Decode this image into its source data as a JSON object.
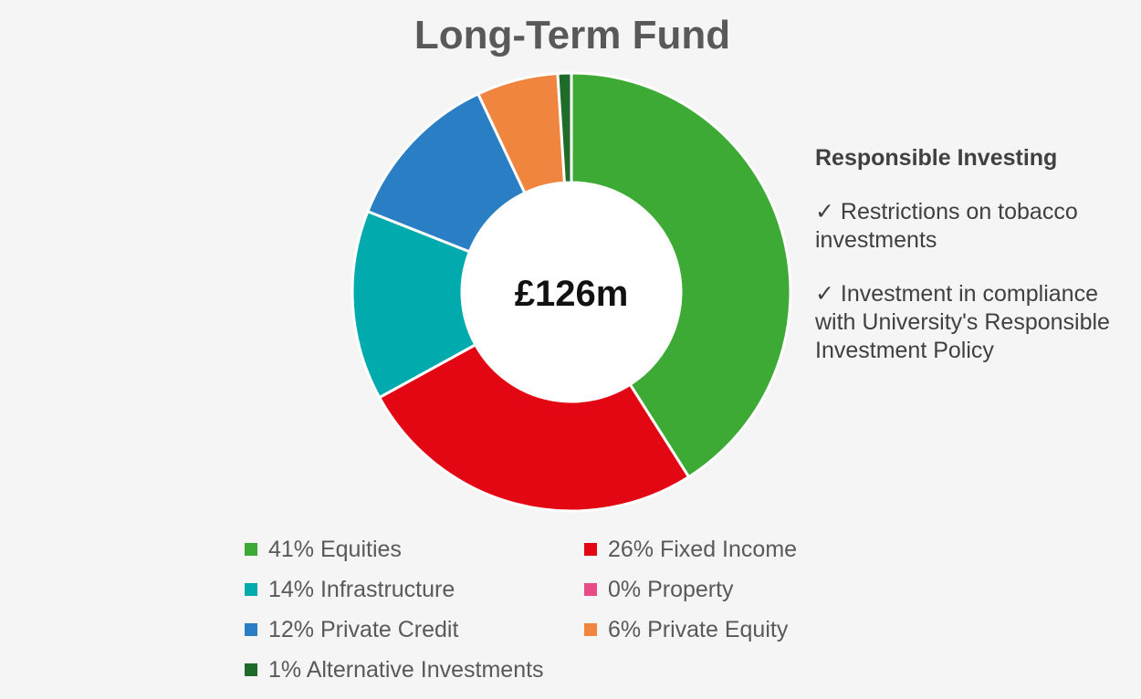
{
  "chart_data": {
    "type": "pie",
    "title": "Long-Term Fund",
    "center_label": "£126m",
    "start_angle_deg": 0,
    "direction": "clockwise",
    "legend_position": "bottom",
    "categories": [
      "Equities",
      "Fixed Income",
      "Infrastructure",
      "Property",
      "Private Credit",
      "Private Equity",
      "Alternative Investments"
    ],
    "values": [
      41,
      26,
      14,
      0,
      12,
      6,
      1
    ],
    "colors": [
      "#3daa35",
      "#e30613",
      "#00aaad",
      "#e94b87",
      "#2a7fc4",
      "#f08540",
      "#1f6b2a"
    ],
    "legend_labels": [
      "41% Equities",
      "26% Fixed Income",
      "14% Infrastructure",
      "0% Property",
      "12% Private Credit",
      "6% Private Equity",
      "1% Alternative Investments"
    ]
  },
  "panel": {
    "heading": "Responsible Investing",
    "points": [
      "✓ Restrictions on tobacco investments",
      "✓ Investment in compliance with University's Responsible Investment Policy"
    ]
  }
}
